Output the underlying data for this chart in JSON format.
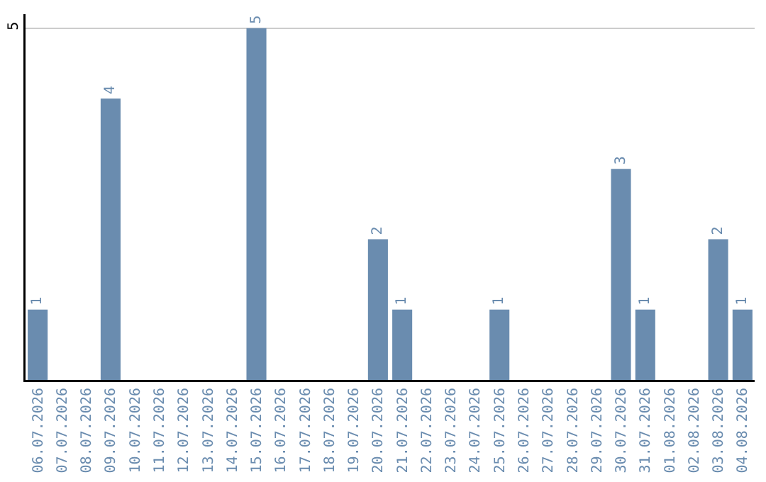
{
  "chart_data": {
    "type": "bar",
    "categories": [
      "06.07.2026",
      "07.07.2026",
      "08.07.2026",
      "09.07.2026",
      "10.07.2026",
      "11.07.2026",
      "12.07.2026",
      "13.07.2026",
      "14.07.2026",
      "15.07.2026",
      "16.07.2026",
      "17.07.2026",
      "18.07.2026",
      "19.07.2026",
      "20.07.2026",
      "21.07.2026",
      "22.07.2026",
      "23.07.2026",
      "24.07.2026",
      "25.07.2026",
      "26.07.2026",
      "27.07.2026",
      "28.07.2026",
      "29.07.2026",
      "30.07.2026",
      "31.07.2026",
      "01.08.2026",
      "02.08.2026",
      "03.08.2026",
      "04.08.2026"
    ],
    "values": [
      1,
      0,
      0,
      4,
      0,
      0,
      0,
      0,
      0,
      5,
      0,
      0,
      0,
      0,
      2,
      1,
      0,
      0,
      0,
      1,
      0,
      0,
      0,
      0,
      3,
      1,
      0,
      0,
      2,
      1
    ],
    "value_labels": [
      "1",
      null,
      null,
      "4",
      null,
      null,
      null,
      null,
      null,
      "5",
      null,
      null,
      null,
      null,
      "2",
      "1",
      null,
      null,
      null,
      "1",
      null,
      null,
      null,
      null,
      "3",
      "1",
      null,
      null,
      "2",
      "1"
    ],
    "color": "#6a8caf",
    "ylim": [
      0,
      5.2
    ],
    "yticks": [
      5
    ],
    "grid": "y",
    "legend": false
  }
}
